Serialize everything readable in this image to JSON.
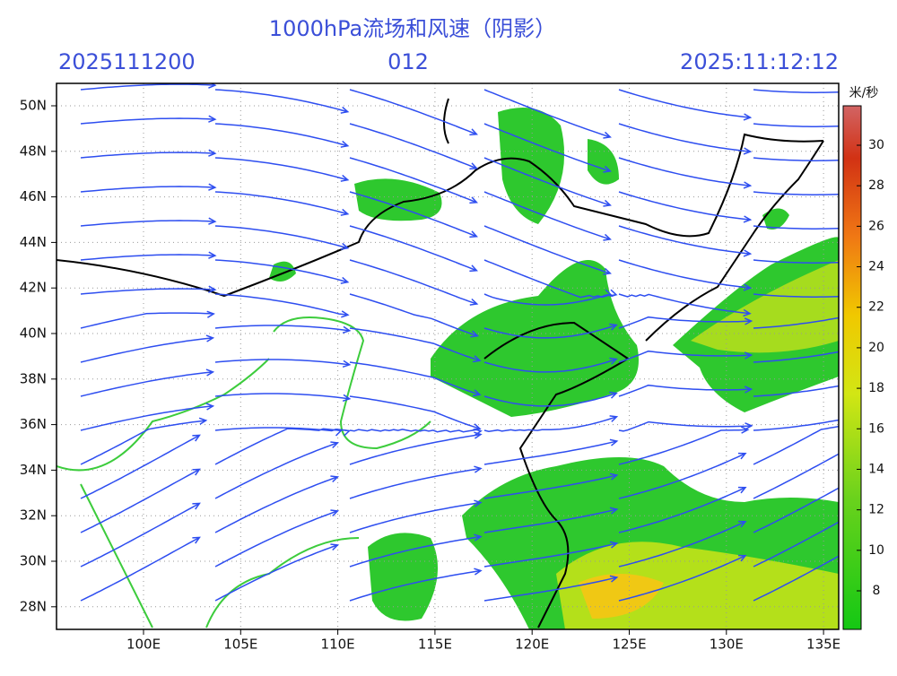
{
  "header": {
    "title": "1000hPa流场和风速（阴影）",
    "run": "2025111200",
    "lead": "012",
    "valid": "2025:11:12:12"
  },
  "map": {
    "lat_labels": [
      "50N",
      "48N",
      "46N",
      "44N",
      "42N",
      "40N",
      "38N",
      "36N",
      "34N",
      "32N",
      "30N",
      "28N"
    ],
    "lon_labels": [
      "100E",
      "105E",
      "110E",
      "115E",
      "120E",
      "125E",
      "130E",
      "135E"
    ]
  },
  "colorbar": {
    "unit": "米/秒",
    "ticks": [
      8,
      10,
      12,
      14,
      16,
      18,
      20,
      22,
      24,
      26,
      28,
      30
    ]
  }
}
